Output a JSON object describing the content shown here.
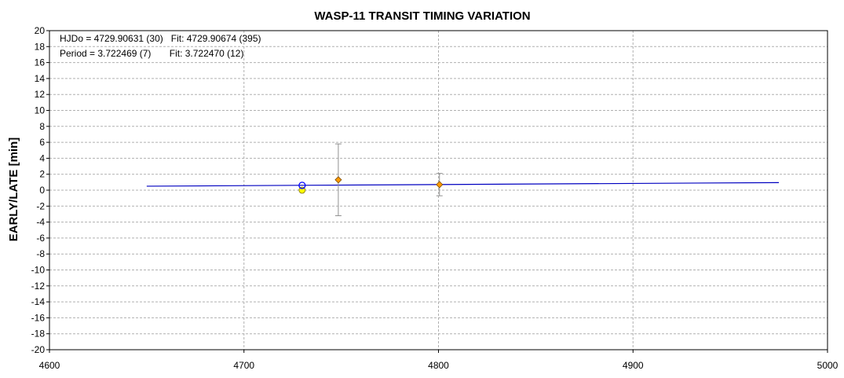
{
  "chart_data": {
    "type": "scatter",
    "title": "WASP-11 TRANSIT TIMING VARIATION",
    "xlabel": "",
    "ylabel": "EARLY/LATE [min]",
    "xlim": [
      4600,
      5000
    ],
    "ylim": [
      -20,
      20
    ],
    "x_ticks": [
      "4600",
      "4700",
      "4800",
      "4900",
      "5000"
    ],
    "y_ticks": [
      "20",
      "18",
      "16",
      "14",
      "12",
      "10",
      "8",
      "6",
      "4",
      "2",
      "0",
      "-2",
      "-4",
      "-6",
      "-8",
      "-10",
      "-12",
      "-14",
      "-16",
      "-18",
      "-20"
    ],
    "grid": true,
    "annotations": [
      "HJDo = 4729.90631 (30)   Fit: 4729.90674 (395)",
      "Period = 3.722469 (7)       Fit: 3.722470 (12)"
    ],
    "fit_line": {
      "x": [
        4650,
        4975
      ],
      "y": [
        0.5,
        0.95
      ],
      "color": "#0000c0"
    },
    "open_circle_points": {
      "x": [
        4729.9
      ],
      "y": [
        0.6
      ],
      "color": "#0000ff"
    },
    "yellow_circle_points": {
      "x": [
        4729.9
      ],
      "y": [
        0.0
      ],
      "color": "#ffff00"
    },
    "diamond_points": {
      "x": [
        4748.5,
        4800.5
      ],
      "y": [
        1.3,
        0.7
      ],
      "err": [
        4.5,
        1.4
      ],
      "color": "#ff9900"
    },
    "colors": {
      "grid": "#b0b0b0",
      "errorbar": "#909090",
      "axis": "#000000"
    }
  }
}
